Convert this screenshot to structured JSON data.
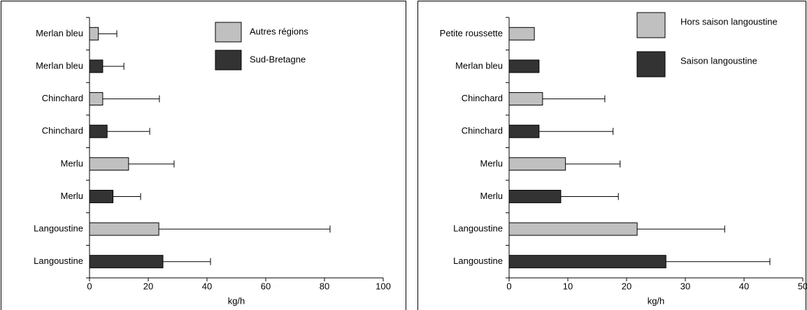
{
  "chart_data": [
    {
      "type": "bar",
      "orientation": "horizontal",
      "categories": [
        "Merlan bleu",
        "Merlan bleu",
        "Chinchard",
        "Chinchard",
        "Merlu",
        "Merlu",
        "Langoustine",
        "Langoustine"
      ],
      "series": [
        {
          "name": "Autres régions",
          "color": "#c0c0c0",
          "values": [
            3,
            null,
            4.5,
            null,
            13.3,
            null,
            23.6,
            null
          ],
          "errors": [
            6.3,
            null,
            19.3,
            null,
            15.5,
            null,
            58.3,
            null
          ]
        },
        {
          "name": "Sud-Bretagne",
          "color": "#333333",
          "values": [
            null,
            4.5,
            null,
            6,
            null,
            8,
            null,
            25
          ],
          "errors": [
            null,
            7.2,
            null,
            14.5,
            null,
            9.4,
            null,
            16.2
          ]
        }
      ],
      "xlim": [
        0,
        100
      ],
      "xticks": [
        0,
        20,
        40,
        60,
        80,
        100
      ],
      "xlabel": "kg/h"
    },
    {
      "type": "bar",
      "orientation": "horizontal",
      "categories": [
        "Petite roussette",
        "Merlan bleu",
        "Chinchard",
        "Chinchard",
        "Merlu",
        "Merlu",
        "Langoustine",
        "Langoustine"
      ],
      "series": [
        {
          "name": "Hors saison langoustine",
          "color": "#c0c0c0",
          "values": [
            4.3,
            null,
            5.7,
            null,
            9.6,
            null,
            21.8,
            null
          ],
          "errors": [
            null,
            null,
            10.6,
            null,
            9.3,
            null,
            14.9,
            null
          ]
        },
        {
          "name": "Saison langoustine",
          "color": "#333333",
          "values": [
            null,
            5.1,
            null,
            5.1,
            null,
            8.8,
            null,
            26.7
          ],
          "errors": [
            null,
            null,
            null,
            12.6,
            null,
            9.8,
            null,
            17.7
          ]
        }
      ],
      "xlim": [
        0,
        50
      ],
      "xticks": [
        0,
        10,
        20,
        30,
        40,
        50
      ],
      "xlabel": "kg/h"
    }
  ]
}
